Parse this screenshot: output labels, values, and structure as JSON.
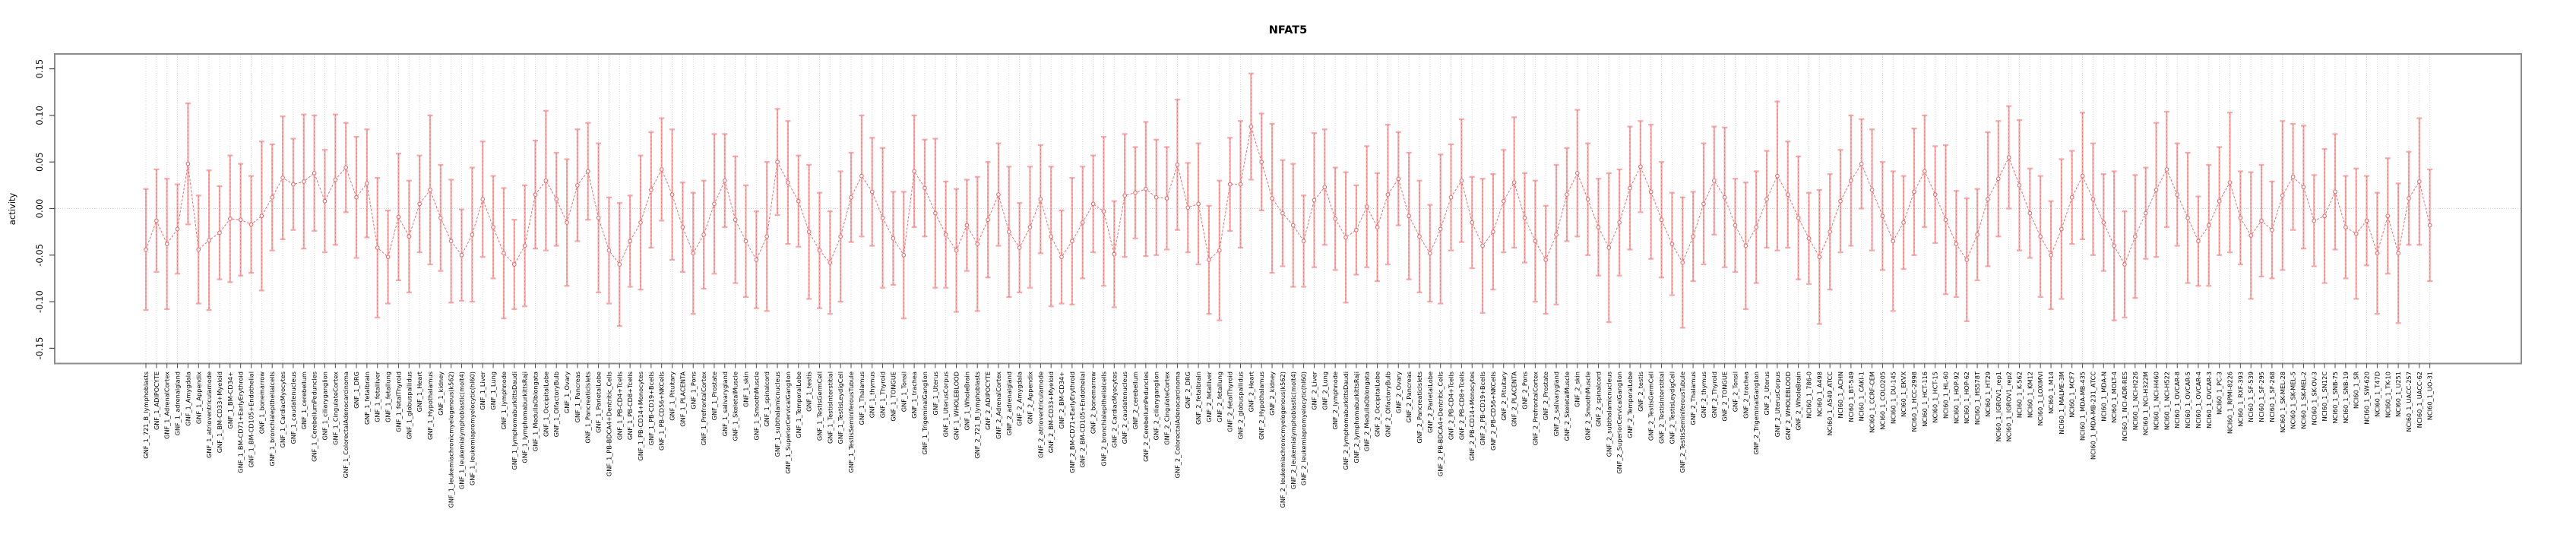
{
  "chart_data": {
    "type": "line",
    "title": "NFAT5",
    "ylabel": "activity",
    "xlabel": "",
    "ylim": [
      -0.17,
      0.17
    ],
    "yticks": [
      -0.15,
      -0.1,
      -0.05,
      0.0,
      0.05,
      0.1,
      0.15
    ],
    "legend": "none",
    "grid": "vertical dotted gridline per category; dotted horizontal line at y=0",
    "marker": "open-circle",
    "line_style": "dashed",
    "error_bars": "vertical with end caps",
    "colors": {
      "error_bar": "#f8a8a8",
      "series_line": "#f26c6c",
      "marker": "#f26c6c",
      "grid": "#d9d9d9",
      "plot_border": "#8c8c8c",
      "axis_tick": "#4d4d4d",
      "text": "#000000",
      "background": "#ffffff"
    },
    "points": [
      [
        "GNF_1_721_B_lymphoblasts",
        -0.044,
        0.065
      ],
      [
        "GNF_1_ADIPOCYTE",
        -0.013,
        0.055
      ],
      [
        "GNF_1_AdrenalCortex",
        -0.038,
        0.07
      ],
      [
        "GNF_1_adrenalgland",
        -0.022,
        0.048
      ],
      [
        "GNF_1_Amygdala",
        0.048,
        0.065
      ],
      [
        "GNF_1_Appendix",
        -0.044,
        0.058
      ],
      [
        "GNF_1_atrioventricularnode",
        -0.034,
        0.075
      ],
      [
        "GNF_1_BM-CD33+Myeloid",
        -0.026,
        0.05
      ],
      [
        "GNF_1_BM-CD34+",
        -0.011,
        0.068
      ],
      [
        "GNF_1_BM-CD71+EarlyErythroid",
        -0.012,
        0.06
      ],
      [
        "GNF_1_BM-CD105+Endothelial",
        -0.017,
        0.052
      ],
      [
        "GNF_1_bonemarrow",
        -0.008,
        0.08
      ],
      [
        "GNF_1_bronchialepithelialcells",
        0.012,
        0.057
      ],
      [
        "GNF_1_CardiacMyocytes",
        0.033,
        0.066
      ],
      [
        "GNF_1_caudatenucleus",
        0.026,
        0.049
      ],
      [
        "GNF_1_cerebellum",
        0.029,
        0.072
      ],
      [
        "GNF_1_CerebellumPeduncles",
        0.038,
        0.062
      ],
      [
        "GNF_1_ciliaryganglion",
        0.008,
        0.055
      ],
      [
        "GNF_1_CingulateCortex",
        0.031,
        0.07
      ],
      [
        "GNF_1_ColorectalAdenocarcinoma",
        0.044,
        0.048
      ],
      [
        "GNF_1_DRG",
        0.012,
        0.065
      ],
      [
        "GNF_1_fetalbrain",
        0.027,
        0.058
      ],
      [
        "GNF_1_fetalliver",
        -0.042,
        0.075
      ],
      [
        "GNF_1_fetallung",
        -0.052,
        0.05
      ],
      [
        "GNF_1_fetalThyroid",
        -0.009,
        0.068
      ],
      [
        "GNF_1_globuspallidus",
        -0.03,
        0.06
      ],
      [
        "GNF_1_Heart",
        0.005,
        0.052
      ],
      [
        "GNF_1_Hypothalamus",
        0.02,
        0.08
      ],
      [
        "GNF_1_kidney",
        -0.01,
        0.057
      ],
      [
        "GNF_1_leukemiachronicmyelogenous(k562)",
        -0.035,
        0.066
      ],
      [
        "GNF_1_leukemialymphoblastic(molt4)",
        -0.05,
        0.049
      ],
      [
        "GNF_1_leukemiapromyelocytic(hl60)",
        -0.028,
        0.072
      ],
      [
        "GNF_1_Liver",
        0.01,
        0.062
      ],
      [
        "GNF_1_Lung",
        -0.02,
        0.055
      ],
      [
        "GNF_1_lymphnode",
        -0.048,
        0.07
      ],
      [
        "GNF_1_lymphomaburkittsDaudi",
        -0.06,
        0.048
      ],
      [
        "GNF_1_lymphomaburkittsRaji",
        -0.04,
        0.065
      ],
      [
        "GNF_1_MedullaOblongata",
        0.015,
        0.058
      ],
      [
        "GNF_1_OccipitalLobe",
        0.03,
        0.075
      ],
      [
        "GNF_1_OlfactoryBulb",
        0.01,
        0.05
      ],
      [
        "GNF_1_Ovary",
        -0.015,
        0.068
      ],
      [
        "GNF_1_Pancreas",
        0.025,
        0.06
      ],
      [
        "GNF_1_PancreaticIslets",
        0.04,
        0.052
      ],
      [
        "GNF_1_ParietalLobe",
        -0.01,
        0.08
      ],
      [
        "GNF_1_PB-BDCA4+Dentritic_Cells",
        -0.045,
        0.057
      ],
      [
        "GNF_1_PB-CD4+Tcells",
        -0.06,
        0.066
      ],
      [
        "GNF_1_PB-CD8+Tcells",
        -0.035,
        0.049
      ],
      [
        "GNF_1_PB-CD14+Monocytes",
        -0.015,
        0.072
      ],
      [
        "GNF_1_PB-CD19+Bcells",
        0.02,
        0.062
      ],
      [
        "GNF_1_PB-CD56+NKCells",
        0.042,
        0.055
      ],
      [
        "GNF_1_Pituitary",
        0.015,
        0.07
      ],
      [
        "GNF_1_PLACENTA",
        -0.02,
        0.048
      ],
      [
        "GNF_1_Pons",
        -0.048,
        0.065
      ],
      [
        "GNF_1_PrefrontalCortex",
        -0.028,
        0.058
      ],
      [
        "GNF_1_Prostate",
        0.005,
        0.075
      ],
      [
        "GNF_1_salivarygland",
        0.03,
        0.05
      ],
      [
        "GNF_1_SkeletalMuscle",
        -0.012,
        0.068
      ],
      [
        "GNF_1_skin",
        -0.035,
        0.06
      ],
      [
        "GNF_1_SmoothMuscle",
        -0.055,
        0.052
      ],
      [
        "GNF_1_spinalcord",
        -0.03,
        0.08
      ],
      [
        "GNF_1_subthalamicnucleus",
        0.05,
        0.057
      ],
      [
        "GNF_1_SuperiorCervicalGanglion",
        0.028,
        0.066
      ],
      [
        "GNF_1_TemporalLobe",
        0.008,
        0.049
      ],
      [
        "GNF_1_testis",
        -0.025,
        0.072
      ],
      [
        "GNF_1_TestisGermCell",
        -0.045,
        0.062
      ],
      [
        "GNF_1_TestisInterstitial",
        -0.058,
        0.055
      ],
      [
        "GNF_1_TestisLeydigCell",
        -0.03,
        0.07
      ],
      [
        "GNF_1_TestisSeminiferousTubule",
        0.012,
        0.048
      ],
      [
        "GNF_1_Thalamus",
        0.035,
        0.065
      ],
      [
        "GNF_1_thymus",
        0.018,
        0.058
      ],
      [
        "GNF_1_Thyroid",
        -0.01,
        0.075
      ],
      [
        "GNF_1_TONGUE",
        -0.032,
        0.05
      ],
      [
        "GNF_1_Tonsil",
        -0.05,
        0.068
      ],
      [
        "GNF_1_trachea",
        0.04,
        0.06
      ],
      [
        "GNF_1_TrigeminalGanglion",
        0.022,
        0.052
      ],
      [
        "GNF_1_Uterus",
        -0.005,
        0.08
      ],
      [
        "GNF_1_UterusCorpus",
        -0.028,
        0.057
      ],
      [
        "GNF_1_WHOLEBLOOD",
        -0.045,
        0.066
      ],
      [
        "GNF_1_WholeBrain",
        -0.018,
        0.049
      ],
      [
        "GNF_2_721_B_lymphoblasts",
        -0.038,
        0.072
      ],
      [
        "GNF_2_ADIPOCYTE",
        -0.012,
        0.062
      ],
      [
        "GNF_2_AdrenalCortex",
        0.015,
        0.055
      ],
      [
        "GNF_2_adrenalgland",
        -0.025,
        0.07
      ],
      [
        "GNF_2_Amygdala",
        -0.042,
        0.048
      ],
      [
        "GNF_2_Appendix",
        -0.02,
        0.065
      ],
      [
        "GNF_2_atrioventricularnode",
        0.01,
        0.058
      ],
      [
        "GNF_2_BM-CD33+Myeloid",
        -0.03,
        0.075
      ],
      [
        "GNF_2_BM-CD34+",
        -0.052,
        0.05
      ],
      [
        "GNF_2_BM-CD71+EarlyErythroid",
        -0.035,
        0.068
      ],
      [
        "GNF_2_BM-CD105+Endothelial",
        -0.015,
        0.06
      ],
      [
        "GNF_2_bonemarrow",
        0.005,
        0.052
      ],
      [
        "GNF_2_bronchialepithelialcells",
        -0.003,
        0.08
      ],
      [
        "GNF_2_CardiacMyocytes",
        -0.049,
        0.057
      ],
      [
        "GNF_2_caudatenucleus",
        0.014,
        0.066
      ],
      [
        "GNF_2_cerebellum",
        0.017,
        0.049
      ],
      [
        "GNF_2_CerebellumPeduncles",
        0.021,
        0.072
      ],
      [
        "GNF_2_ciliaryganglion",
        0.012,
        0.062
      ],
      [
        "GNF_2_CingulateCortex",
        0.011,
        0.055
      ],
      [
        "GNF_2_ColorectalAdenocarcinoma",
        0.047,
        0.07
      ],
      [
        "GNF_2_DRG",
        0.001,
        0.048
      ],
      [
        "GNF_2_fetalbrain",
        0.005,
        0.065
      ],
      [
        "GNF_2_fetalliver",
        -0.055,
        0.058
      ],
      [
        "GNF_2_fetallung",
        -0.045,
        0.075
      ],
      [
        "GNF_2_fetalThyroid",
        0.026,
        0.05
      ],
      [
        "GNF_2_globuspallidus",
        0.026,
        0.068
      ],
      [
        "GNF_2_Heart",
        0.088,
        0.057
      ],
      [
        "GNF_2_Hypothalamus",
        0.05,
        0.052
      ],
      [
        "GNF_2_kidney",
        0.011,
        0.08
      ],
      [
        "GNF_2_leukemiachronicmyelogenous(k562)",
        -0.005,
        0.057
      ],
      [
        "GNF_2_leukemialymphoblastic(molt4)",
        -0.018,
        0.066
      ],
      [
        "GNF_2_leukemiapromyelocytic(hl60)",
        -0.035,
        0.049
      ],
      [
        "GNF_2_Liver",
        0.009,
        0.072
      ],
      [
        "GNF_2_Lung",
        0.023,
        0.062
      ],
      [
        "GNF_2_lymphnode",
        -0.011,
        0.055
      ],
      [
        "GNF_2_lymphomaburkittsDaudi",
        -0.031,
        0.07
      ],
      [
        "GNF_2_lymphomaburkittsRaji",
        -0.023,
        0.048
      ],
      [
        "GNF_2_MedullaOblongata",
        0.002,
        0.065
      ],
      [
        "GNF_2_OccipitalLobe",
        -0.02,
        0.058
      ],
      [
        "GNF_2_OlfactoryBulb",
        0.015,
        0.075
      ],
      [
        "GNF_2_Ovary",
        0.032,
        0.05
      ],
      [
        "GNF_2_Pancreas",
        -0.008,
        0.068
      ],
      [
        "GNF_2_PancreaticIslets",
        -0.03,
        0.06
      ],
      [
        "GNF_2_ParietalLobe",
        -0.048,
        0.052
      ],
      [
        "GNF_2_PB-BDCA4+Dentritic_Cells",
        -0.022,
        0.08
      ],
      [
        "GNF_2_PB-CD4+Tcells",
        0.012,
        0.057
      ],
      [
        "GNF_2_PB-CD8+Tcells",
        0.03,
        0.066
      ],
      [
        "GNF_2_PB-CD14+Monocytes",
        -0.015,
        0.049
      ],
      [
        "GNF_2_PB-CD19+Bcells",
        -0.04,
        0.072
      ],
      [
        "GNF_2_PB-CD56+NKCells",
        -0.025,
        0.062
      ],
      [
        "GNF_2_Pituitary",
        0.008,
        0.055
      ],
      [
        "GNF_2_PLACENTA",
        0.028,
        0.07
      ],
      [
        "GNF_2_Pons",
        -0.01,
        0.048
      ],
      [
        "GNF_2_PrefrontalCortex",
        -0.035,
        0.065
      ],
      [
        "GNF_2_Prostate",
        -0.055,
        0.058
      ],
      [
        "GNF_2_salivarygland",
        -0.028,
        0.075
      ],
      [
        "GNF_2_SkeletalMuscle",
        0.015,
        0.05
      ],
      [
        "GNF_2_skin",
        0.038,
        0.068
      ],
      [
        "GNF_2_SmoothMuscle",
        0.01,
        0.06
      ],
      [
        "GNF_2_spinalcord",
        -0.02,
        0.052
      ],
      [
        "GNF_2_subthalamicnucleus",
        -0.042,
        0.08
      ],
      [
        "GNF_2_SuperiorCervicalGanglion",
        -0.015,
        0.057
      ],
      [
        "GNF_2_TemporalLobe",
        0.022,
        0.066
      ],
      [
        "GNF_2_testis",
        0.045,
        0.049
      ],
      [
        "GNF_2_TestisGermCell",
        0.018,
        0.072
      ],
      [
        "GNF_2_TestisInterstitial",
        -0.012,
        0.062
      ],
      [
        "GNF_2_TestisLeydigCell",
        -0.038,
        0.055
      ],
      [
        "GNF_2_TestisSeminiferousTubule",
        -0.058,
        0.07
      ],
      [
        "GNF_2_Thalamus",
        -0.03,
        0.048
      ],
      [
        "GNF_2_thymus",
        0.005,
        0.065
      ],
      [
        "GNF_2_Thyroid",
        0.03,
        0.058
      ],
      [
        "GNF_2_TONGUE",
        0.012,
        0.075
      ],
      [
        "GNF_2_Tonsil",
        -0.018,
        0.05
      ],
      [
        "GNF_2_trachea",
        -0.04,
        0.068
      ],
      [
        "GNF_2_TrigeminalGanglion",
        -0.02,
        0.06
      ],
      [
        "GNF_2_Uterus",
        0.01,
        0.052
      ],
      [
        "GNF_2_UterusCorpus",
        0.035,
        0.08
      ],
      [
        "GNF_2_WHOLEBLOOD",
        0.015,
        0.057
      ],
      [
        "GNF_2_WholeBrain",
        -0.01,
        0.066
      ],
      [
        "NCI60_1_786-0",
        -0.032,
        0.049
      ],
      [
        "NCI60_1_A498",
        -0.052,
        0.072
      ],
      [
        "NCI60_1_A549_ATCC",
        -0.025,
        0.062
      ],
      [
        "NCI60_1_ACHN",
        0.008,
        0.055
      ],
      [
        "NCI60_1_BT-549",
        0.03,
        0.07
      ],
      [
        "NCI60_1_CAKI-1",
        0.048,
        0.048
      ],
      [
        "NCI60_1_CCRF-CEM",
        0.02,
        0.065
      ],
      [
        "NCI60_1_COLO205",
        -0.008,
        0.058
      ],
      [
        "NCI60_1_DU-145",
        -0.035,
        0.075
      ],
      [
        "NCI60_1_EKVX",
        -0.015,
        0.05
      ],
      [
        "NCI60_1_HCC-2998",
        0.018,
        0.068
      ],
      [
        "NCI60_1_HCT-116",
        0.04,
        0.06
      ],
      [
        "NCI60_1_HCT-15",
        0.015,
        0.052
      ],
      [
        "NCI60_1_HL-60",
        -0.012,
        0.08
      ],
      [
        "NCI60_1_HOP-92",
        -0.038,
        0.057
      ],
      [
        "NCI60_1_HOP-62",
        -0.055,
        0.066
      ],
      [
        "NCI60_1_HS578T",
        -0.028,
        0.049
      ],
      [
        "NCI60_1_HT29",
        0.01,
        0.072
      ],
      [
        "NCI60_1_IGROV1_rep1",
        0.032,
        0.062
      ],
      [
        "NCI60_1_IGROV1_rep2",
        0.055,
        0.055
      ],
      [
        "NCI60_1_K-562",
        0.025,
        0.07
      ],
      [
        "NCI60_1_KM12",
        -0.005,
        0.048
      ],
      [
        "NCI60_1_LOXIMVI",
        -0.03,
        0.065
      ],
      [
        "NCI60_1_M14",
        -0.05,
        0.058
      ],
      [
        "NCI60_1_MALME-3M",
        -0.022,
        0.075
      ],
      [
        "NCI60_1_MCF7",
        0.012,
        0.05
      ],
      [
        "NCI60_1_MDA-MB-435",
        0.035,
        0.068
      ],
      [
        "NCI60_1_MDA-MB-231_ATCC",
        0.01,
        0.06
      ],
      [
        "NCI60_1_MDA-N",
        -0.015,
        0.052
      ],
      [
        "NCI60_1_MOLT-4",
        -0.04,
        0.08
      ],
      [
        "NCI60_1_NCI-ADR-RES",
        -0.06,
        0.057
      ],
      [
        "NCI60_1_NCI-H226",
        -0.03,
        0.066
      ],
      [
        "NCI60_1_NCI-H322M",
        -0.005,
        0.049
      ],
      [
        "NCI60_1_NCI-H460",
        0.02,
        0.072
      ],
      [
        "NCI60_1_NCI-H522",
        0.042,
        0.062
      ],
      [
        "NCI60_1_OVCAR-8",
        0.015,
        0.055
      ],
      [
        "NCI60_1_OVCAR-5",
        -0.01,
        0.07
      ],
      [
        "NCI60_1_OVCAR-4",
        -0.035,
        0.048
      ],
      [
        "NCI60_1_OVCAR-3",
        -0.018,
        0.065
      ],
      [
        "NCI60_1_PC-3",
        0.008,
        0.058
      ],
      [
        "NCI60_1_RPMI-8226",
        0.028,
        0.075
      ],
      [
        "NCI60_1_RXF-393",
        -0.01,
        0.05
      ],
      [
        "NCI60_1_SF-539",
        -0.029,
        0.068
      ],
      [
        "NCI60_1_SF-295",
        -0.013,
        0.06
      ],
      [
        "NCI60_1_SF-268",
        -0.023,
        0.052
      ],
      [
        "NCI60_1_SK-MEL-28",
        0.014,
        0.08
      ],
      [
        "NCI60_1_SK-MEL-5",
        0.034,
        0.057
      ],
      [
        "NCI60_1_SK-MEL-2",
        0.023,
        0.066
      ],
      [
        "NCI60_1_SK-OV-3",
        -0.013,
        0.049
      ],
      [
        "NCI60_1_SN12C",
        -0.008,
        0.072
      ],
      [
        "NCI60_1_SNB-75",
        0.018,
        0.062
      ],
      [
        "NCI60_1_SNB-19",
        -0.02,
        0.055
      ],
      [
        "NCI60_1_SR",
        -0.027,
        0.07
      ],
      [
        "NCI60_1_SW-620",
        -0.013,
        0.048
      ],
      [
        "NCI60_1_T47D",
        -0.048,
        0.065
      ],
      [
        "NCI60_1_TK-10",
        -0.008,
        0.062
      ],
      [
        "NCI60_1_U251",
        -0.048,
        0.075
      ],
      [
        "NCI60_1_UACC-257",
        0.011,
        0.05
      ],
      [
        "NCI60_1_UACC-62",
        0.029,
        0.068
      ],
      [
        "NCI60_1_UO-31",
        -0.018,
        0.06
      ]
    ]
  }
}
